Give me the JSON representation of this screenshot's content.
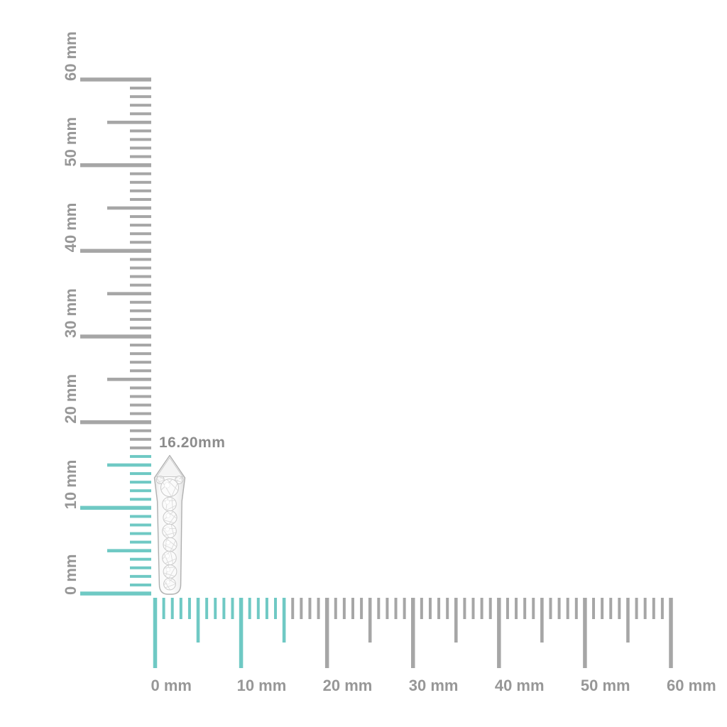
{
  "page": {
    "background": "#ffffff"
  },
  "measurement": {
    "label": "16.20mm",
    "value_mm": 16.2
  },
  "item": {
    "icon": "pave-diamond-drop-earring"
  },
  "colors": {
    "highlight_teal": "#6fc9c4",
    "tick_gray": "#a6a6a6",
    "label_gray": "#979797",
    "measurement_text_gray": "#8c8c8c",
    "metal_outline": "#b0b0b0",
    "stone_stroke": "#c9c9c9",
    "facet_stroke": "#dadada"
  },
  "rulers": {
    "unit": "mm",
    "vertical": {
      "min_mm": 0,
      "max_mm": 60,
      "minor_step_mm": 1,
      "half_step_mm": 5,
      "major_step_mm": 10,
      "highlight_through_mm": 16,
      "labels": [
        "0 mm",
        "10 mm",
        "20 mm",
        "30 mm",
        "40 mm",
        "50 mm",
        "60 mm"
      ]
    },
    "horizontal": {
      "min_mm": 0,
      "max_mm": 60,
      "minor_step_mm": 1,
      "half_step_mm": 5,
      "major_step_mm": 10,
      "highlight_through_mm": 15,
      "labels": [
        "0 mm",
        "10 mm",
        "20 mm",
        "30 mm",
        "40 mm",
        "50 mm",
        "60 mm"
      ]
    }
  }
}
